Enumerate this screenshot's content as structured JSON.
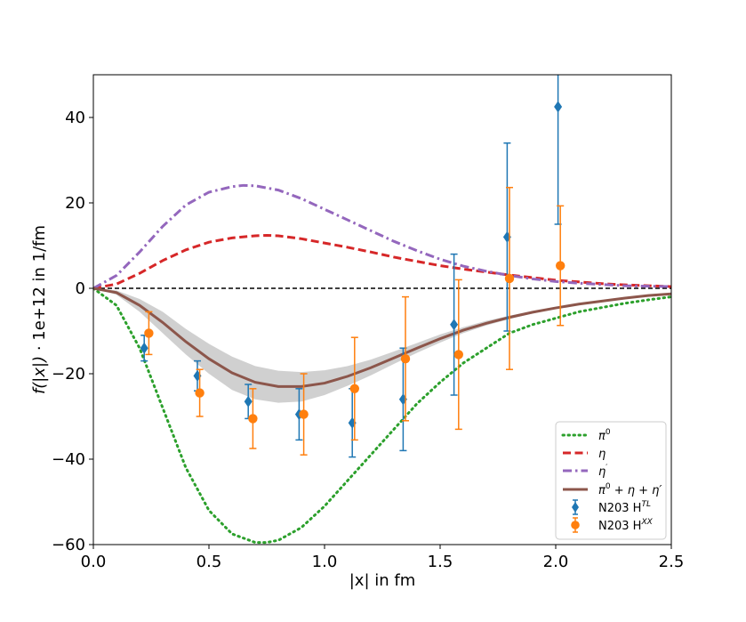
{
  "chart_data": {
    "type": "line",
    "xlabel": "|x| in fm",
    "ylabel_parts": [
      "f(|x|)",
      " · 1e+12 in 1/fm"
    ],
    "xlim": [
      0.0,
      2.5
    ],
    "ylim": [
      -60,
      50
    ],
    "xticks": [
      "0.0",
      "0.5",
      "1.0",
      "1.5",
      "2.0",
      "2.5"
    ],
    "yticks": [
      "−60",
      "−40",
      "−20",
      "0",
      "20",
      "40"
    ],
    "grid": false,
    "legend_position": "lower-right",
    "zero_line": true,
    "colors": {
      "pi0": "#2ca02c",
      "eta": "#d62728",
      "etaprime": "#9467bd",
      "sum": "#8c564b",
      "band": "#c8c8c8",
      "n203_tl": "#1f77b4",
      "n203_xx": "#ff7f0e"
    },
    "legend": [
      {
        "base": "π",
        "sup": "0",
        "rest": ""
      },
      {
        "base": "η",
        "sup": "",
        "rest": ""
      },
      {
        "base": "η",
        "sup": "′",
        "rest": ""
      },
      {
        "base": "π",
        "sup": "0",
        "rest": " + η + η′"
      },
      {
        "base": "N203 H",
        "sup": "TL",
        "rest": ""
      },
      {
        "base": "N203 H",
        "sup": "XX",
        "rest": ""
      }
    ],
    "series": [
      {
        "key": "pi0",
        "style": "dotted",
        "x": [
          0.0,
          0.1,
          0.2,
          0.3,
          0.4,
          0.5,
          0.6,
          0.7,
          0.75,
          0.8,
          0.9,
          1.0,
          1.1,
          1.2,
          1.3,
          1.4,
          1.5,
          1.6,
          1.7,
          1.8,
          1.9,
          2.0,
          2.1,
          2.2,
          2.3,
          2.4,
          2.5
        ],
        "y": [
          0,
          -4,
          -14,
          -28,
          -42,
          -52,
          -57.5,
          -59.5,
          -59.5,
          -59,
          -56,
          -51,
          -45,
          -39,
          -33,
          -27,
          -22,
          -17.5,
          -14,
          -10.5,
          -8.5,
          -7,
          -5.5,
          -4.5,
          -3.5,
          -2.7,
          -2
        ]
      },
      {
        "key": "eta",
        "style": "dashed",
        "x": [
          0.0,
          0.1,
          0.2,
          0.3,
          0.4,
          0.5,
          0.6,
          0.7,
          0.75,
          0.8,
          0.9,
          1.0,
          1.1,
          1.2,
          1.3,
          1.4,
          1.5,
          1.6,
          1.7,
          1.8,
          1.9,
          2.0,
          2.1,
          2.2,
          2.3,
          2.4,
          2.5
        ],
        "y": [
          0,
          1,
          3.5,
          6.5,
          9,
          10.8,
          11.8,
          12.3,
          12.4,
          12.3,
          11.6,
          10.6,
          9.6,
          8.5,
          7.3,
          6.3,
          5.3,
          4.5,
          3.8,
          3.1,
          2.5,
          1.9,
          1.5,
          1.1,
          0.8,
          0.6,
          0.4
        ]
      },
      {
        "key": "etaprime",
        "style": "dashdot",
        "x": [
          0.0,
          0.1,
          0.2,
          0.3,
          0.4,
          0.5,
          0.6,
          0.65,
          0.7,
          0.8,
          0.9,
          1.0,
          1.1,
          1.2,
          1.3,
          1.4,
          1.5,
          1.6,
          1.7,
          1.8,
          1.9,
          2.0,
          2.1,
          2.2,
          2.3,
          2.4,
          2.5
        ],
        "y": [
          0,
          3,
          8.5,
          14.5,
          19.5,
          22.5,
          23.8,
          24.1,
          24,
          23,
          21,
          18.5,
          16,
          13.5,
          11,
          8.8,
          6.8,
          5.2,
          4,
          3,
          2.2,
          1.6,
          1.2,
          0.9,
          0.6,
          0.5,
          0.4
        ]
      },
      {
        "key": "sum",
        "style": "solid",
        "x": [
          0.0,
          0.1,
          0.2,
          0.3,
          0.4,
          0.5,
          0.6,
          0.7,
          0.8,
          0.9,
          1.0,
          1.1,
          1.2,
          1.3,
          1.4,
          1.5,
          1.6,
          1.7,
          1.8,
          1.9,
          2.0,
          2.1,
          2.2,
          2.3,
          2.4,
          2.5
        ],
        "y": [
          0,
          -1,
          -4,
          -8,
          -12.5,
          -16.5,
          -19.8,
          -22,
          -23,
          -23,
          -22.2,
          -20.6,
          -18.6,
          -16.3,
          -14,
          -11.8,
          -9.8,
          -8.2,
          -6.8,
          -5.6,
          -4.6,
          -3.7,
          -3,
          -2.3,
          -1.7,
          -1.3
        ]
      }
    ],
    "band": {
      "key": "band",
      "x": [
        0.0,
        0.1,
        0.2,
        0.3,
        0.4,
        0.5,
        0.6,
        0.7,
        0.8,
        0.9,
        1.0,
        1.1,
        1.2,
        1.3,
        1.4,
        1.5,
        1.6,
        1.7,
        1.8,
        1.9,
        2.0,
        2.1,
        2.2,
        2.3,
        2.4,
        2.5
      ],
      "lower": [
        0,
        -1.5,
        -5.5,
        -10.5,
        -15.5,
        -20,
        -23.8,
        -26,
        -26.8,
        -26.5,
        -25,
        -22.8,
        -20.4,
        -17.7,
        -15.1,
        -12.7,
        -10.5,
        -8.7,
        -7.2,
        -5.9,
        -4.8,
        -3.9,
        -3.1,
        -2.4,
        -1.8,
        -1.3
      ],
      "upper": [
        0,
        -0.5,
        -2.5,
        -5.5,
        -9.5,
        -13,
        -16,
        -18.2,
        -19.3,
        -19.6,
        -19.2,
        -18.2,
        -16.7,
        -14.8,
        -12.8,
        -10.8,
        -9.1,
        -7.6,
        -6.4,
        -5.3,
        -4.4,
        -3.5,
        -2.9,
        -2.2,
        -1.6,
        -1.3
      ]
    },
    "points": [
      {
        "key": "n203_tl",
        "marker": "diamond",
        "x": [
          0.22,
          0.45,
          0.67,
          0.89,
          1.12,
          1.34,
          1.56,
          1.79,
          2.01
        ],
        "y": [
          -14,
          -20.5,
          -26.5,
          -29.5,
          -31.5,
          -26,
          -8.5,
          12,
          42.5
        ],
        "err": [
          3,
          3.5,
          4,
          6,
          8,
          12,
          16.5,
          22,
          27.5
        ]
      },
      {
        "key": "n203_xx",
        "marker": "circle",
        "x": [
          0.24,
          0.46,
          0.69,
          0.91,
          1.13,
          1.35,
          1.58,
          1.8,
          2.02
        ],
        "y": [
          -10.5,
          -24.5,
          -30.5,
          -29.5,
          -23.5,
          -16.5,
          -15.5,
          2.3,
          5.3
        ],
        "err": [
          5,
          5.5,
          7,
          9.5,
          12,
          14.5,
          17.5,
          21.3,
          14
        ]
      }
    ]
  }
}
